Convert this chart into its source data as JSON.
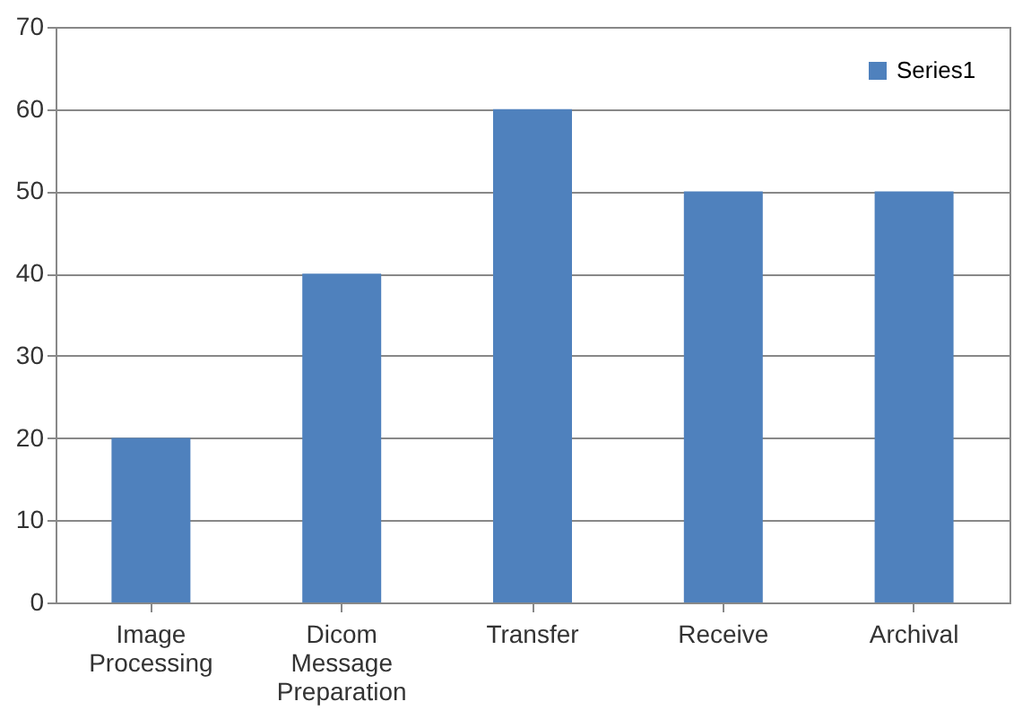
{
  "chart_data": {
    "type": "bar",
    "categories": [
      "Image Processing",
      "Dicom Message Preparation",
      "Transfer",
      "Receive",
      "Archival"
    ],
    "series": [
      {
        "name": "Series1",
        "color": "#4f81bd",
        "values": [
          20,
          40,
          60,
          50,
          50
        ]
      }
    ],
    "ylim": [
      0,
      70
    ],
    "yticks": [
      0,
      10,
      20,
      30,
      40,
      50,
      60,
      70
    ],
    "grid": "y",
    "legend": "top right"
  }
}
